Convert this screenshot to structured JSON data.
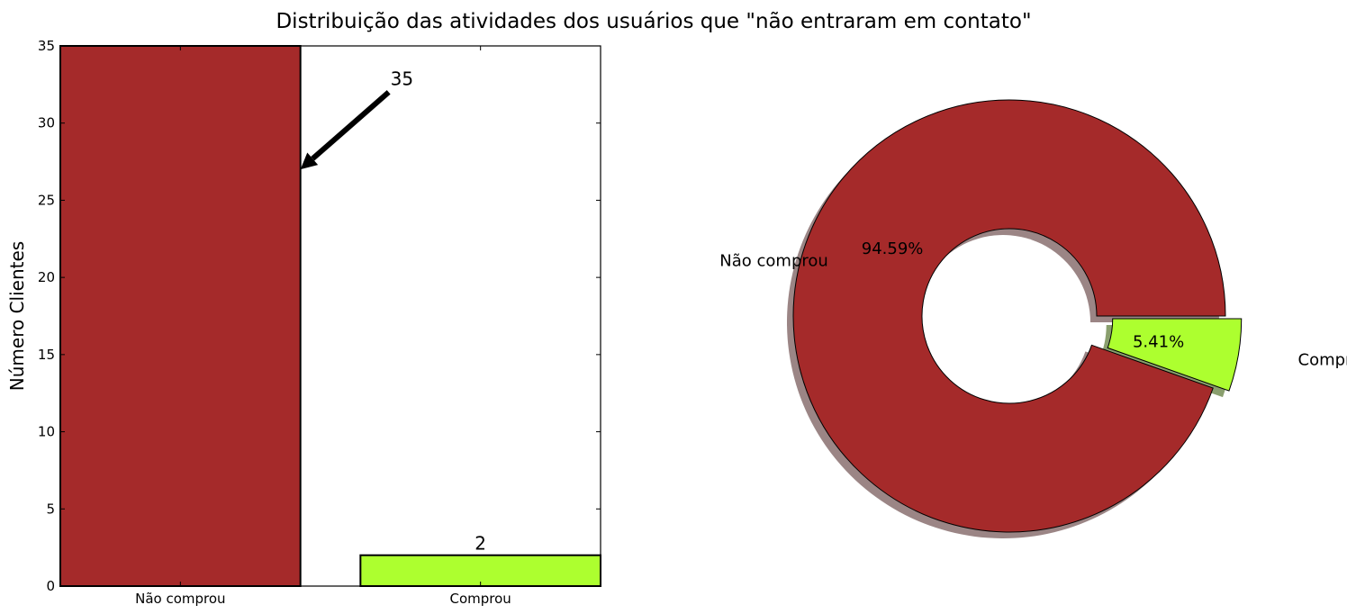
{
  "title": "Distribuição das atividades dos usuários que \"não entraram em contato\"",
  "chart_data": [
    {
      "type": "bar",
      "categories": [
        "Não comprou",
        "Comprou"
      ],
      "values": [
        35,
        2
      ],
      "data_labels": [
        "35",
        "2"
      ],
      "colors": [
        "#a52a2a",
        "#adff2f"
      ],
      "xlabel": "",
      "ylabel": "Número Clientes",
      "ylim": [
        0,
        35
      ],
      "yticks": [
        "0",
        "5",
        "10",
        "15",
        "20",
        "25",
        "30",
        "35"
      ],
      "grid": false
    },
    {
      "type": "pie",
      "style": "donut",
      "labels": [
        "Não comprou",
        "Comprou"
      ],
      "values": [
        94.59,
        5.41
      ],
      "pct_labels": [
        "94.59%",
        "5.41%"
      ],
      "colors": [
        "#a52a2a",
        "#adff2f"
      ],
      "exploded": [
        "",
        "Comprou"
      ],
      "shadow": true
    }
  ]
}
